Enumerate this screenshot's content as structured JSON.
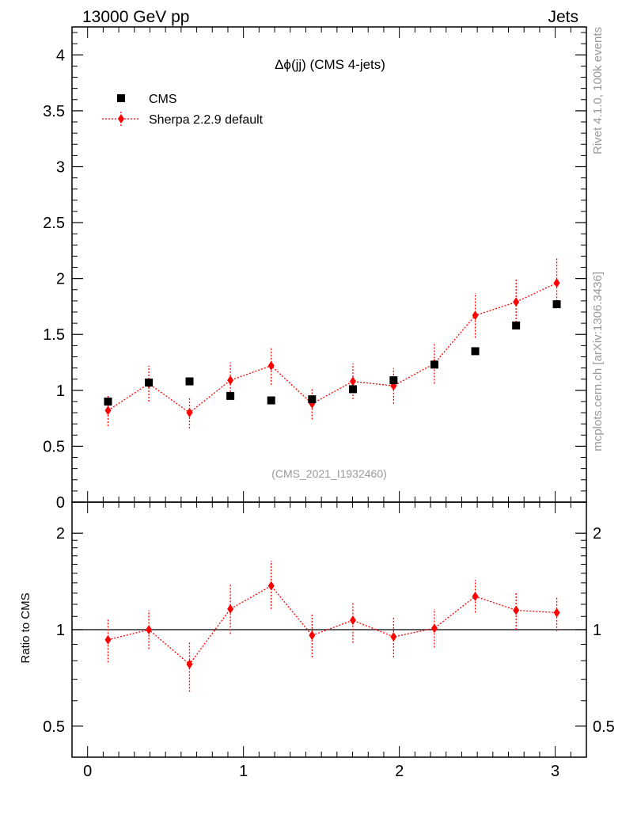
{
  "header": {
    "left": "13000 GeV pp",
    "right": "Jets"
  },
  "side": {
    "rivet": "Rivet 4.1.0,  100k events",
    "mcplots": "mcplots.cern.ch [arXiv:1306.3436]"
  },
  "colors": {
    "data": "#000000",
    "mc": "#ff0000",
    "watermark": "#999999"
  },
  "chart_data": [
    {
      "type": "scatter",
      "title": "Δϕ(jj) (CMS 4-jets)",
      "watermark": "(CMS_2021_I1932460)",
      "xlim": [
        -0.1,
        3.2
      ],
      "ylim": [
        0,
        4.25
      ],
      "yticks": [
        {
          "v": 0,
          "label": "0"
        },
        {
          "v": 0.5,
          "label": "0.5"
        },
        {
          "v": 1,
          "label": "1"
        },
        {
          "v": 1.5,
          "label": "1.5"
        },
        {
          "v": 2,
          "label": "2"
        },
        {
          "v": 2.5,
          "label": "2.5"
        },
        {
          "v": 3,
          "label": "3"
        },
        {
          "v": 3.5,
          "label": "3.5"
        },
        {
          "v": 4,
          "label": "4"
        }
      ],
      "legend": {
        "position": "top-left",
        "entries": [
          "CMS",
          "Sherpa 2.2.9 default"
        ]
      },
      "x": [
        0.131,
        0.393,
        0.654,
        0.916,
        1.178,
        1.44,
        1.702,
        1.963,
        2.225,
        2.487,
        2.749,
        3.01
      ],
      "series": [
        {
          "name": "CMS",
          "style": "square",
          "values": [
            0.9,
            1.07,
            1.08,
            0.95,
            0.91,
            0.92,
            1.01,
            1.09,
            1.23,
            1.35,
            1.58,
            1.77
          ]
        },
        {
          "name": "Sherpa 2.2.9 default",
          "style": "diamond-dotted-line",
          "values": [
            0.82,
            1.06,
            0.8,
            1.09,
            1.22,
            0.88,
            1.08,
            1.04,
            1.24,
            1.67,
            1.79,
            1.96
          ],
          "errors": [
            0.14,
            0.16,
            0.14,
            0.16,
            0.17,
            0.14,
            0.16,
            0.16,
            0.18,
            0.2,
            0.21,
            0.22
          ]
        }
      ]
    },
    {
      "type": "scatter",
      "ylabel": "Ratio to CMS",
      "xlim": [
        -0.1,
        3.2
      ],
      "ylim": [
        0.4,
        2.5
      ],
      "yscale": "log",
      "yticks": [
        {
          "v": 0.5,
          "label": "0.5"
        },
        {
          "v": 1,
          "label": "1"
        },
        {
          "v": 2,
          "label": "2"
        }
      ],
      "xticks": [
        {
          "v": 0,
          "label": "0"
        },
        {
          "v": 1,
          "label": "1"
        },
        {
          "v": 2,
          "label": "2"
        },
        {
          "v": 3,
          "label": "3"
        }
      ],
      "reference": 1,
      "x": [
        0.131,
        0.393,
        0.654,
        0.916,
        1.178,
        1.44,
        1.702,
        1.963,
        2.225,
        2.487,
        2.749,
        3.01
      ],
      "series": [
        {
          "name": "Sherpa 2.2.9 default",
          "values": [
            0.93,
            1.0,
            0.78,
            1.16,
            1.37,
            0.96,
            1.07,
            0.95,
            1.01,
            1.27,
            1.15,
            1.13
          ],
          "err_low": [
            0.14,
            0.13,
            0.14,
            0.19,
            0.21,
            0.14,
            0.16,
            0.13,
            0.13,
            0.14,
            0.15,
            0.14
          ],
          "err_high": [
            0.15,
            0.15,
            0.14,
            0.23,
            0.27,
            0.16,
            0.15,
            0.14,
            0.15,
            0.16,
            0.15,
            0.14
          ]
        }
      ]
    }
  ]
}
